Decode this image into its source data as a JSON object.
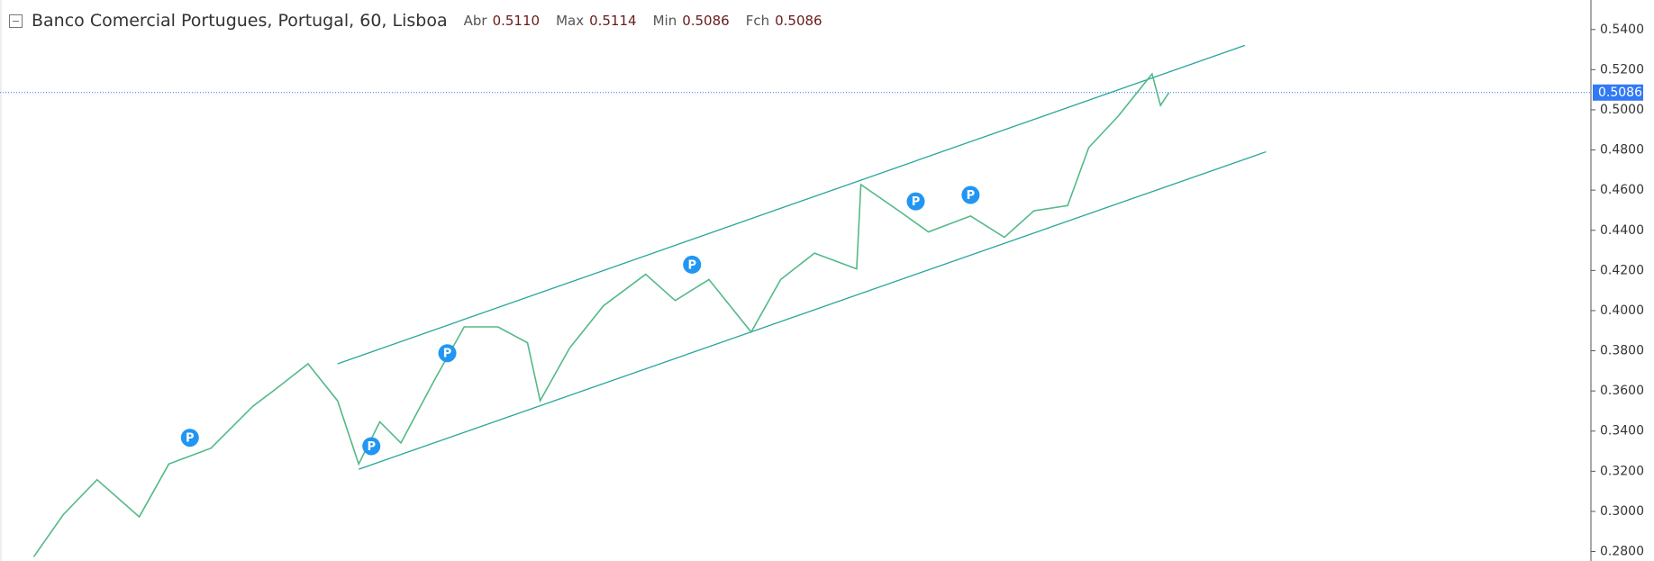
{
  "chart_data": {
    "type": "line",
    "title": "Banco Comercial Portugues, Portugal, 60, Lisboa",
    "ohlc": [
      {
        "label": "Abr",
        "value": "0.5110"
      },
      {
        "label": "Max",
        "value": "0.5114"
      },
      {
        "label": "Min",
        "value": "0.5086"
      },
      {
        "label": "Fch",
        "value": "0.5086"
      }
    ],
    "xlim": [
      0,
      377
    ],
    "ylim": [
      0.2753,
      0.5547
    ],
    "yticks": [
      {
        "value": 0.28,
        "label": "0.2800"
      },
      {
        "value": 0.3,
        "label": "0.3000"
      },
      {
        "value": 0.32,
        "label": "0.3200"
      },
      {
        "value": 0.34,
        "label": "0.3400"
      },
      {
        "value": 0.36,
        "label": "0.3600"
      },
      {
        "value": 0.38,
        "label": "0.3800"
      },
      {
        "value": 0.4,
        "label": "0.4000"
      },
      {
        "value": 0.42,
        "label": "0.4200"
      },
      {
        "value": 0.44,
        "label": "0.4400"
      },
      {
        "value": 0.46,
        "label": "0.4600"
      },
      {
        "value": 0.48,
        "label": "0.4800"
      },
      {
        "value": 0.5,
        "label": "0.5000"
      },
      {
        "value": 0.52,
        "label": "0.5200"
      },
      {
        "value": 0.54,
        "label": "0.5400"
      }
    ],
    "series": [
      {
        "color": "#53b987",
        "x": [
          8,
          15,
          23,
          33,
          40,
          50,
          60,
          65,
          73,
          80,
          85,
          90,
          95,
          103,
          110,
          118,
          125,
          128,
          135,
          143,
          153,
          160,
          168,
          178,
          185,
          193,
          203,
          204,
          213,
          220,
          230,
          238,
          245,
          253,
          258,
          265,
          273,
          275,
          277
        ],
        "values": [
          0.2774,
          0.2984,
          0.3158,
          0.2973,
          0.3236,
          0.3315,
          0.3525,
          0.3604,
          0.3735,
          0.3551,
          0.3236,
          0.3446,
          0.3341,
          0.3656,
          0.3919,
          0.3919,
          0.384,
          0.3551,
          0.3814,
          0.4024,
          0.4181,
          0.405,
          0.4155,
          0.3893,
          0.4155,
          0.4286,
          0.4208,
          0.4628,
          0.4497,
          0.4392,
          0.4471,
          0.4365,
          0.4497,
          0.4523,
          0.4812,
          0.4969,
          0.5179,
          0.5022,
          0.5086
        ]
      }
    ],
    "channel": {
      "color": "#26a69a",
      "lines": [
        {
          "x": [
            80,
            295
          ],
          "values": [
            0.3735,
            0.5321
          ]
        },
        {
          "x": [
            85,
            300
          ],
          "values": [
            0.321,
            0.4791
          ]
        }
      ]
    },
    "markers": [
      {
        "label": "P",
        "x": 45,
        "y": 0.3367
      },
      {
        "label": "P",
        "x": 88,
        "y": 0.3325
      },
      {
        "label": "P",
        "x": 106,
        "y": 0.3788
      },
      {
        "label": "P",
        "x": 164,
        "y": 0.4229
      },
      {
        "label": "P",
        "x": 217,
        "y": 0.4544
      },
      {
        "label": "P",
        "x": 230,
        "y": 0.4576
      }
    ],
    "last_price": 0.5086,
    "last_price_color": "#3179f5"
  }
}
